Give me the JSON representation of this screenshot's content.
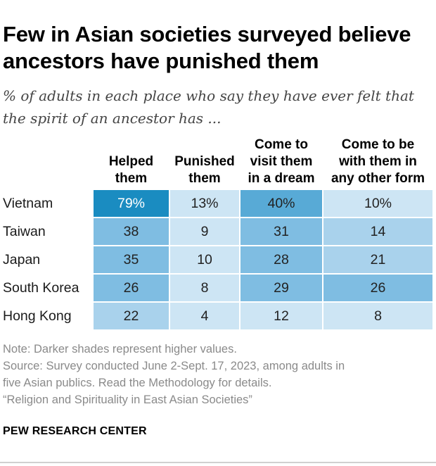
{
  "title_line1": "Few in Asian societies surveyed believe",
  "title_line2": "ancestors have punished them",
  "subtitle_line1": "% of adults in each place who say they have ever felt that",
  "subtitle_line2": "the spirit of an ancestor has ...",
  "chart_data": {
    "type": "table",
    "columns": [
      "Helped\nthem",
      "Punished\nthem",
      "Come to\nvisit them\nin a dream",
      "Come to be\nwith them in\nany other form"
    ],
    "rows": [
      {
        "label": "Vietnam",
        "values": [
          79,
          13,
          40,
          10
        ],
        "display": [
          "79%",
          "13%",
          "40%",
          "10%"
        ]
      },
      {
        "label": "Taiwan",
        "values": [
          38,
          9,
          31,
          14
        ],
        "display": [
          "38",
          "9",
          "31",
          "14"
        ]
      },
      {
        "label": "Japan",
        "values": [
          35,
          10,
          28,
          21
        ],
        "display": [
          "35",
          "10",
          "28",
          "21"
        ]
      },
      {
        "label": "South Korea",
        "values": [
          26,
          8,
          29,
          26
        ],
        "display": [
          "26",
          "8",
          "29",
          "26"
        ]
      },
      {
        "label": "Hong Kong",
        "values": [
          22,
          4,
          12,
          8
        ],
        "display": [
          "22",
          "4",
          "12",
          "8"
        ]
      }
    ],
    "shading": "Darker shades represent higher values",
    "colors": {
      "darkest": "#1a8cc1",
      "dark": "#58aad6",
      "medium": "#7fbde2",
      "light": "#a9d2ec",
      "lightest": "#cde5f4"
    }
  },
  "notes": {
    "note": "Note: Darker shades represent higher values.",
    "source_line1": "Source: Survey conducted June 2-Sept. 17, 2023, among adults in",
    "source_line2": "five Asian publics. Read the Methodology for details.",
    "report": "“Religion and Spirituality in East Asian Societies”"
  },
  "brand": "PEW RESEARCH CENTER"
}
